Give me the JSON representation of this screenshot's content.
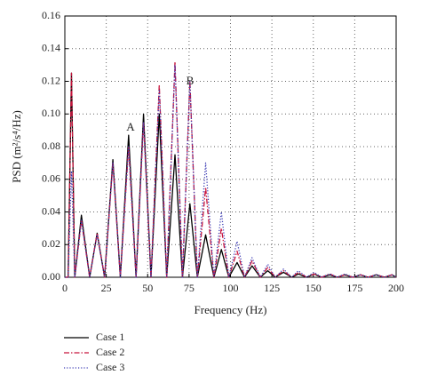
{
  "chart_data": {
    "type": "line",
    "xlabel": "Frequency (Hz)",
    "ylabel": "PSD (m²/s⁴/Hz)",
    "x": [
      0,
      2,
      4,
      6,
      10,
      15,
      19.5,
      24,
      29,
      33.5,
      38.5,
      43,
      47.5,
      52,
      57,
      61.5,
      66.5,
      71,
      75.5,
      80,
      85,
      90,
      94.5,
      99,
      104,
      108.5,
      113,
      118,
      122.5,
      127,
      132,
      137,
      141,
      146,
      150.5,
      155,
      160,
      164.5,
      169,
      174,
      178.5,
      183,
      188,
      193,
      197.5,
      200
    ],
    "series": [
      {
        "name": "Case 1",
        "color": "#000000",
        "linestyle": "solid",
        "values": [
          0,
          0,
          0.125,
          0,
          0.038,
          0,
          0.027,
          0,
          0.072,
          0,
          0.087,
          0,
          0.1,
          0,
          0.1,
          0,
          0.075,
          0,
          0.045,
          0,
          0.026,
          0,
          0.017,
          0,
          0.009,
          0,
          0.007,
          0,
          0.004,
          0,
          0.003,
          0,
          0.002,
          0,
          0.002,
          0,
          0.0015,
          0,
          0.0015,
          0,
          0.0015,
          0,
          0.0015,
          0,
          0.0015,
          0
        ]
      },
      {
        "name": "Case 2",
        "color": "#c8143c",
        "linestyle": "dashdot",
        "values": [
          0,
          0,
          0.125,
          0,
          0.035,
          0,
          0.027,
          0,
          0.07,
          0,
          0.08,
          0,
          0.095,
          0,
          0.118,
          0,
          0.132,
          0,
          0.12,
          0,
          0.055,
          0,
          0.03,
          0,
          0.016,
          0,
          0.01,
          0,
          0.006,
          0,
          0.004,
          0,
          0.003,
          0,
          0.002,
          0,
          0.002,
          0,
          0.0015,
          0,
          0.0015,
          0,
          0.0015,
          0,
          0.0015,
          0
        ]
      },
      {
        "name": "Case 3",
        "color": "#3c3cb4",
        "linestyle": "dotted",
        "values": [
          0,
          0,
          0.065,
          0,
          0.035,
          0,
          0.026,
          0,
          0.07,
          0,
          0.08,
          0,
          0.095,
          0,
          0.115,
          0,
          0.13,
          0,
          0.12,
          0,
          0.07,
          0,
          0.04,
          0,
          0.022,
          0,
          0.012,
          0,
          0.008,
          0,
          0.005,
          0,
          0.004,
          0,
          0.003,
          0,
          0.002,
          0,
          0.002,
          0,
          0.0015,
          0,
          0.0015,
          0,
          0.0015,
          0
        ]
      }
    ],
    "annotations": [
      {
        "text": "A"
      },
      {
        "text": "B"
      }
    ],
    "xlim": [
      0,
      200
    ],
    "xticks": [
      0,
      25,
      50,
      75,
      100,
      125,
      150,
      175,
      200
    ],
    "ylim": [
      0,
      0.16
    ],
    "yticks": [
      {
        "value": 0,
        "label": "0.00"
      },
      {
        "value": 0.02,
        "label": "0.02"
      },
      {
        "value": 0.04,
        "label": "0.04"
      },
      {
        "value": 0.06,
        "label": "0.06"
      },
      {
        "value": 0.08,
        "label": "0.08"
      },
      {
        "value": 0.1,
        "label": "0.10"
      },
      {
        "value": 0.12,
        "label": "0.12"
      },
      {
        "value": 0.14,
        "label": "0.14"
      },
      {
        "value": 0.16,
        "label": "0.16"
      }
    ],
    "grid": true,
    "legend": "below-left"
  }
}
